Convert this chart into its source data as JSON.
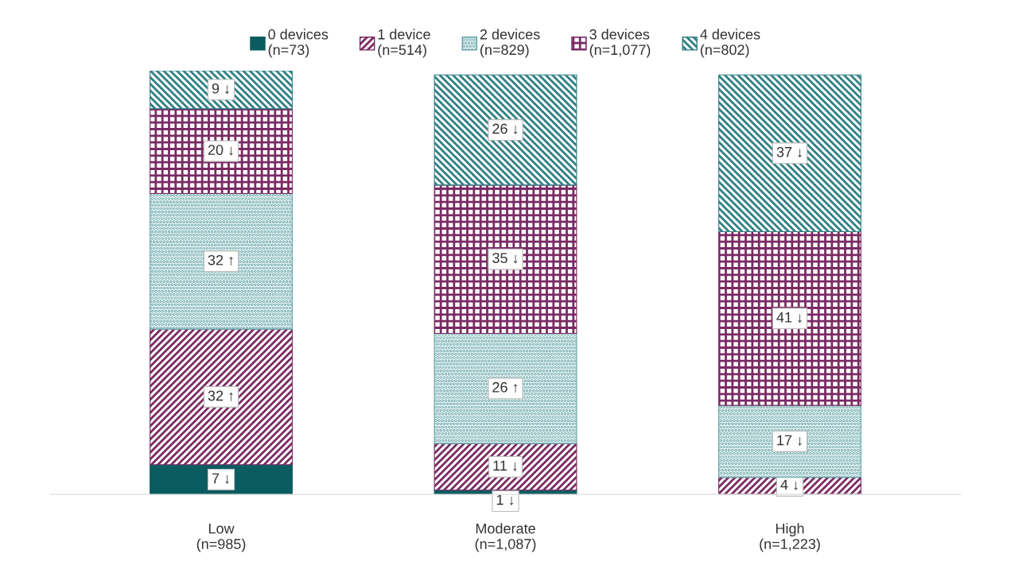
{
  "chart_data": {
    "type": "bar",
    "stacked": true,
    "legend": "top",
    "grid": false,
    "tick_labels": "x",
    "categories": [
      "Low\n(n=985)",
      "Moderate\n(n=1,087)",
      "High\n(n=1,223)"
    ],
    "series": [
      {
        "name": "0 devices\n(n=73)",
        "color": "#0b5c61",
        "values": [
          7,
          1,
          null
        ],
        "value_labels": [
          "7 ↓",
          "1 ↓",
          null
        ]
      },
      {
        "name": "1 device\n(n=514)",
        "color": "#7a2a63",
        "values": [
          32,
          11,
          4
        ],
        "value_labels": [
          "32 ↑",
          "11 ↓",
          "4 ↓"
        ]
      },
      {
        "name": "2 devices\n(n=829)",
        "color": "#5fa3a6",
        "values": [
          32,
          26,
          17
        ],
        "value_labels": [
          "32 ↑",
          "26 ↑",
          "17 ↓"
        ]
      },
      {
        "name": "3 devices\n(n=1,077)",
        "color": "#7a2a63",
        "values": [
          20,
          35,
          41
        ],
        "value_labels": [
          "20 ↓",
          "35 ↓",
          "41 ↓"
        ]
      },
      {
        "name": "4 devices\n(n=802)",
        "color": "#2f7f84",
        "values": [
          9,
          26,
          37
        ],
        "value_labels": [
          "9 ↓",
          "26 ↓",
          "37 ↓"
        ]
      }
    ]
  }
}
